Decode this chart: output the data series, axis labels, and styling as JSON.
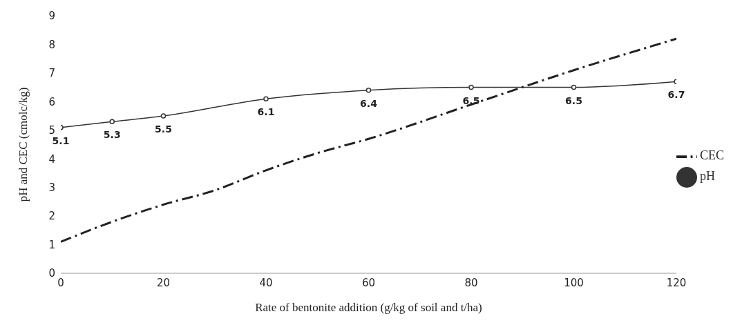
{
  "chart_data": {
    "type": "line",
    "xlabel": "Rate of bentonite addition (g/kg of soil and t/ha)",
    "ylabel": "pH and CEC (cmolc/kg)",
    "xlim": [
      0,
      120
    ],
    "xticks": [
      0,
      20,
      40,
      60,
      80,
      100,
      120
    ],
    "ylim": [
      0,
      9
    ],
    "yticks": [
      0,
      1,
      2,
      3,
      4,
      5,
      6,
      7,
      8,
      9
    ],
    "legend": "right",
    "series": [
      {
        "name": "pH",
        "color": "#333333",
        "marker": "circle",
        "line_style": "solid",
        "x": [
          0,
          10,
          20,
          40,
          60,
          80,
          100,
          120
        ],
        "values": [
          5.1,
          5.3,
          5.5,
          6.1,
          6.4,
          6.5,
          6.5,
          6.7
        ],
        "value_labels": [
          "5.1",
          "5.3",
          "5.5",
          "6.1",
          "6.4",
          "6.5",
          "6.5",
          "6.7"
        ]
      },
      {
        "name": "CEC",
        "color": "#222222",
        "marker": "none",
        "line_style": "dashed",
        "x": [
          0,
          10,
          20,
          30,
          40,
          50,
          60,
          80,
          100,
          120
        ],
        "values": [
          1.1,
          1.8,
          2.4,
          2.9,
          3.6,
          4.2,
          4.7,
          5.9,
          7.1,
          8.2
        ]
      }
    ]
  }
}
